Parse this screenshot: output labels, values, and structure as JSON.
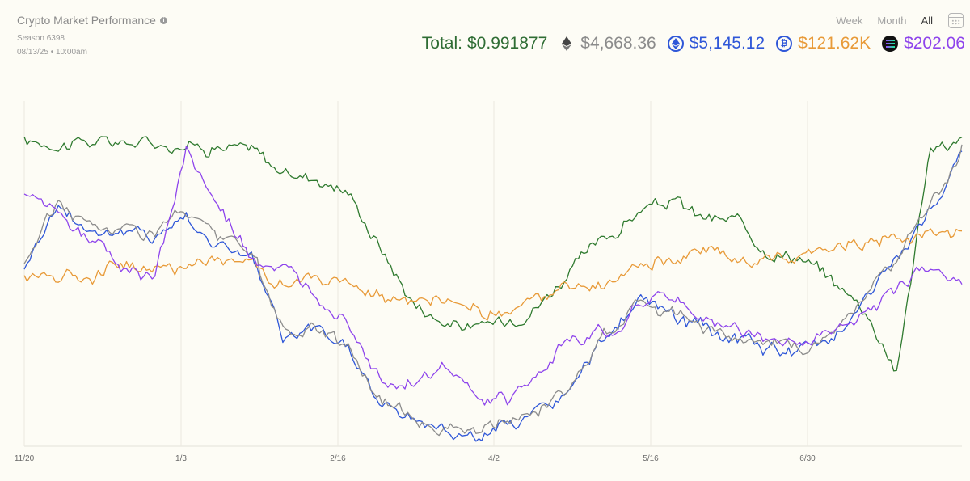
{
  "header": {
    "title": "Crypto Market Performance",
    "season": "Season 6398",
    "date": "08/13/25 • 10:00am"
  },
  "range_tabs": [
    {
      "label": "Week",
      "active": false
    },
    {
      "label": "Month",
      "active": false
    },
    {
      "label": "All",
      "active": true
    }
  ],
  "totals": {
    "total_label": "Total:",
    "total_value": "$0.991877",
    "coins": [
      {
        "icon": "eth-diamond-icon",
        "value": "$4,668.36",
        "color": "#8b8b8b"
      },
      {
        "icon": "eth-ring-icon",
        "value": "$5,145.12",
        "color": "#2f57d8"
      },
      {
        "icon": "btc-ring-icon",
        "value": "$121.62K",
        "color": "#e89a38"
      },
      {
        "icon": "sol-logo-icon",
        "value": "$202.06",
        "color": "#8e44ec"
      }
    ]
  },
  "chart_data": {
    "type": "line",
    "x_ticks": [
      "11/20",
      "1/3",
      "2/16",
      "4/2",
      "5/16",
      "6/30"
    ],
    "grid": "vertical",
    "legend": "none",
    "y_scale": "normalized, no axis labels",
    "series": [
      {
        "color": "#2f7a2f",
        "values": [
          0.88,
          0.88,
          0.88,
          0.88,
          0.88,
          0.875,
          0.87,
          0.86,
          0.79,
          0.78,
          0.74,
          0.58,
          0.42,
          0.36,
          0.34,
          0.37,
          0.42,
          0.52,
          0.6,
          0.68,
          0.71,
          0.66,
          0.65,
          0.57,
          0.55,
          0.48,
          0.4,
          0.22,
          0.86,
          0.88
        ]
      },
      {
        "color": "#2f57d8",
        "values": [
          0.52,
          0.7,
          0.63,
          0.62,
          0.61,
          0.67,
          0.58,
          0.56,
          0.31,
          0.33,
          0.29,
          0.12,
          0.08,
          0.05,
          0.03,
          0.06,
          0.1,
          0.17,
          0.32,
          0.42,
          0.38,
          0.34,
          0.31,
          0.28,
          0.27,
          0.32,
          0.43,
          0.54,
          0.68,
          0.85
        ]
      },
      {
        "color": "#8c8c8c",
        "values": [
          0.53,
          0.71,
          0.64,
          0.63,
          0.62,
          0.68,
          0.59,
          0.57,
          0.32,
          0.34,
          0.3,
          0.13,
          0.09,
          0.06,
          0.04,
          0.07,
          0.11,
          0.18,
          0.33,
          0.43,
          0.39,
          0.35,
          0.32,
          0.29,
          0.28,
          0.33,
          0.44,
          0.55,
          0.69,
          0.86
        ]
      },
      {
        "color": "#e89a38",
        "values": [
          0.49,
          0.5,
          0.5,
          0.54,
          0.51,
          0.52,
          0.55,
          0.53,
          0.47,
          0.48,
          0.46,
          0.44,
          0.4,
          0.41,
          0.4,
          0.38,
          0.43,
          0.45,
          0.47,
          0.52,
          0.54,
          0.56,
          0.54,
          0.55,
          0.56,
          0.58,
          0.6,
          0.61,
          0.61,
          0.62
        ]
      },
      {
        "color": "#8e44ec",
        "values": [
          0.72,
          0.7,
          0.6,
          0.52,
          0.48,
          0.86,
          0.68,
          0.55,
          0.5,
          0.44,
          0.38,
          0.2,
          0.18,
          0.22,
          0.14,
          0.12,
          0.22,
          0.32,
          0.33,
          0.4,
          0.44,
          0.36,
          0.34,
          0.31,
          0.3,
          0.33,
          0.39,
          0.45,
          0.53,
          0.48
        ]
      }
    ]
  }
}
